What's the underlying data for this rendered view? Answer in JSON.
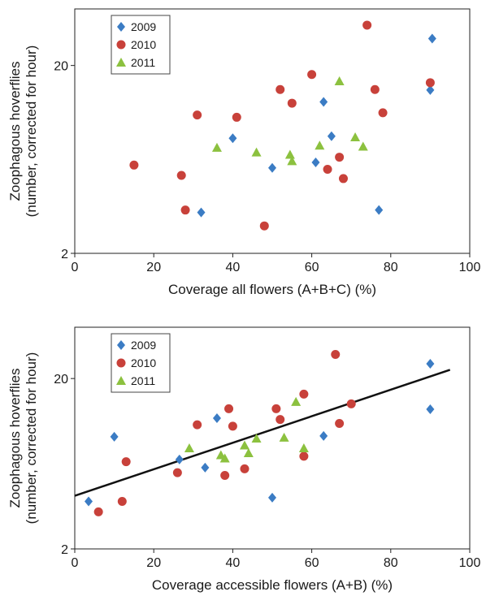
{
  "chart_data": [
    {
      "type": "scatter",
      "xlabel": "Coverage all flowers (A+B+C) (%)",
      "ylabel": [
        "Zoophagous hoverflies",
        "(number, corrected for hour)"
      ],
      "xlim": [
        0,
        100
      ],
      "ylim": [
        2,
        40
      ],
      "y_scale": "log",
      "x_ticks": [
        0,
        20,
        40,
        60,
        80,
        100
      ],
      "y_ticks": [
        2,
        20
      ],
      "legend_position": "top-left",
      "grid": false,
      "series": [
        {
          "name": "2009",
          "color": "#3b7cc4",
          "marker": "diamond",
          "points": [
            [
              32,
              3.3
            ],
            [
              40,
              8.2
            ],
            [
              50,
              5.7
            ],
            [
              61,
              6.1
            ],
            [
              63,
              12.8
            ],
            [
              65,
              8.4
            ],
            [
              77,
              3.4
            ],
            [
              90,
              14.8
            ],
            [
              90.5,
              27.8
            ]
          ]
        },
        {
          "name": "2010",
          "color": "#c8413a",
          "marker": "circle",
          "points": [
            [
              15,
              5.9
            ],
            [
              27,
              5.2
            ],
            [
              28,
              3.4
            ],
            [
              31,
              10.9
            ],
            [
              41,
              10.6
            ],
            [
              48,
              2.8
            ],
            [
              52,
              14.9
            ],
            [
              55,
              12.6
            ],
            [
              60,
              17.9
            ],
            [
              64,
              5.6
            ],
            [
              67,
              6.5
            ],
            [
              68,
              5.0
            ],
            [
              74,
              32.8
            ],
            [
              76,
              14.9
            ],
            [
              78,
              11.2
            ],
            [
              90,
              16.2
            ]
          ]
        },
        {
          "name": "2011",
          "color": "#8cc13f",
          "marker": "triangle",
          "points": [
            [
              36,
              7.3
            ],
            [
              46,
              6.9
            ],
            [
              54.5,
              6.7
            ],
            [
              55,
              6.2
            ],
            [
              62,
              7.5
            ],
            [
              67,
              16.5
            ],
            [
              71,
              8.3
            ],
            [
              73,
              7.4
            ]
          ]
        }
      ]
    },
    {
      "type": "scatter",
      "xlabel": "Coverage accessible flowers (A+B) (%)",
      "ylabel": [
        "Zoophagous hoverflies",
        "(number, corrected for hour)"
      ],
      "xlim": [
        0,
        100
      ],
      "ylim": [
        2,
        40
      ],
      "y_scale": "log",
      "x_ticks": [
        0,
        20,
        40,
        60,
        80,
        100
      ],
      "y_ticks": [
        2,
        20
      ],
      "legend_position": "top-left",
      "grid": false,
      "trendline": [
        [
          0,
          4.1
        ],
        [
          95,
          22.5
        ]
      ],
      "series": [
        {
          "name": "2009",
          "color": "#3b7cc4",
          "marker": "diamond",
          "points": [
            [
              3.5,
              3.8
            ],
            [
              10,
              9.1
            ],
            [
              26.5,
              6.7
            ],
            [
              33,
              6.0
            ],
            [
              36,
              11.7
            ],
            [
              50,
              4.0
            ],
            [
              63,
              9.2
            ],
            [
              90,
              13.2
            ],
            [
              90,
              24.4
            ]
          ]
        },
        {
          "name": "2010",
          "color": "#c8413a",
          "marker": "circle",
          "points": [
            [
              6,
              3.3
            ],
            [
              12,
              3.8
            ],
            [
              13,
              6.5
            ],
            [
              26,
              5.6
            ],
            [
              31,
              10.7
            ],
            [
              38,
              5.4
            ],
            [
              39,
              13.3
            ],
            [
              40,
              10.5
            ],
            [
              43,
              5.9
            ],
            [
              51,
              13.3
            ],
            [
              52,
              11.5
            ],
            [
              58,
              7.0
            ],
            [
              58,
              16.2
            ],
            [
              66,
              27.7
            ],
            [
              67,
              10.9
            ],
            [
              70,
              14.2
            ]
          ]
        },
        {
          "name": "2011",
          "color": "#8cc13f",
          "marker": "triangle",
          "points": [
            [
              29,
              7.8
            ],
            [
              37,
              7.1
            ],
            [
              38,
              6.8
            ],
            [
              43,
              8.1
            ],
            [
              44,
              7.3
            ],
            [
              46,
              8.9
            ],
            [
              53,
              9.0
            ],
            [
              56,
              14.6
            ],
            [
              58,
              7.8
            ]
          ]
        }
      ]
    }
  ]
}
